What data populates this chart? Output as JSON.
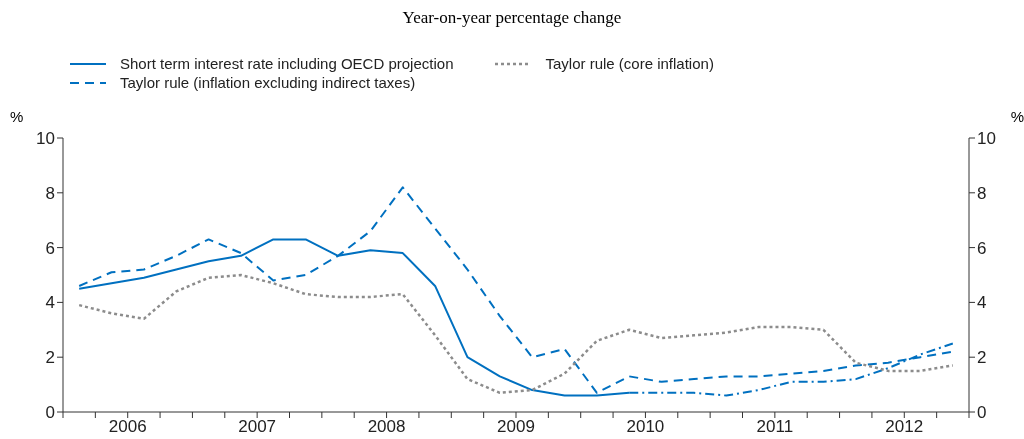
{
  "chart_data": {
    "type": "line",
    "subtitle": "Year-on-year percentage change",
    "ylabel": "%",
    "y2label": "%",
    "x": [
      2006.125,
      2006.375,
      2006.625,
      2006.875,
      2007.125,
      2007.375,
      2007.625,
      2007.875,
      2008.125,
      2008.375,
      2008.625,
      2008.875,
      2009.125,
      2009.375,
      2009.625,
      2009.875,
      2010.125,
      2010.375,
      2010.625,
      2010.875,
      2011.125,
      2011.375,
      2011.625,
      2011.875,
      2012.125,
      2012.375,
      2012.625,
      2012.875
    ],
    "xlim": [
      2006,
      2013
    ],
    "xticks": [
      {
        "value": 2006,
        "label": null
      },
      {
        "value": 2006.25,
        "label": null
      },
      {
        "value": 2006.5,
        "label": "2006"
      },
      {
        "value": 2006.75,
        "label": null
      },
      {
        "value": 2007,
        "label": null
      },
      {
        "value": 2007.25,
        "label": null
      },
      {
        "value": 2007.5,
        "label": "2007"
      },
      {
        "value": 2007.75,
        "label": null
      },
      {
        "value": 2008,
        "label": null
      },
      {
        "value": 2008.25,
        "label": null
      },
      {
        "value": 2008.5,
        "label": "2008"
      },
      {
        "value": 2008.75,
        "label": null
      },
      {
        "value": 2009,
        "label": null
      },
      {
        "value": 2009.25,
        "label": null
      },
      {
        "value": 2009.5,
        "label": "2009"
      },
      {
        "value": 2009.75,
        "label": null
      },
      {
        "value": 2010,
        "label": null
      },
      {
        "value": 2010.25,
        "label": null
      },
      {
        "value": 2010.5,
        "label": "2010"
      },
      {
        "value": 2010.75,
        "label": null
      },
      {
        "value": 2011,
        "label": null
      },
      {
        "value": 2011.25,
        "label": null
      },
      {
        "value": 2011.5,
        "label": "2011"
      },
      {
        "value": 2011.75,
        "label": null
      },
      {
        "value": 2012,
        "label": null
      },
      {
        "value": 2012.25,
        "label": null
      },
      {
        "value": 2012.5,
        "label": "2012"
      },
      {
        "value": 2012.75,
        "label": null
      },
      {
        "value": 2013,
        "label": null
      }
    ],
    "ylim": [
      0,
      10
    ],
    "yticks": [
      0,
      2,
      4,
      6,
      8,
      10
    ],
    "y2lim": [
      0,
      10
    ],
    "y2ticks": [
      0,
      2,
      4,
      6,
      8,
      10
    ],
    "grid": false,
    "legend": "top",
    "marker": "none",
    "series": [
      {
        "name": "Short term interest rate including OECD projection",
        "color": "#0070c0",
        "line_style": "solid",
        "values": [
          4.5,
          4.7,
          4.9,
          5.2,
          5.5,
          5.7,
          6.3,
          6.3,
          5.7,
          5.9,
          5.8,
          4.6,
          2.0,
          1.3,
          0.8,
          0.6,
          0.6,
          0.7,
          null,
          null,
          null,
          null,
          null,
          null,
          null,
          null,
          null,
          null
        ]
      },
      {
        "color": "#0070c0",
        "line_style": "dashdot",
        "values": [
          null,
          null,
          null,
          null,
          null,
          null,
          null,
          null,
          null,
          null,
          null,
          null,
          null,
          null,
          null,
          null,
          null,
          0.7,
          0.7,
          0.7,
          0.6,
          0.8,
          1.1,
          1.1,
          1.2,
          1.6,
          2.1,
          2.5
        ]
      },
      {
        "name": "Taylor rule (inflation excluding indirect taxes)",
        "color": "#0070c0",
        "line_style": "dashed",
        "values": [
          4.6,
          5.1,
          5.2,
          5.7,
          6.3,
          5.8,
          4.8,
          5.0,
          5.7,
          6.6,
          8.2,
          6.7,
          5.2,
          3.5,
          2.0,
          2.3,
          0.7,
          1.3,
          1.1,
          1.2,
          1.3,
          1.3,
          1.4,
          1.5,
          1.7,
          1.8,
          2.0,
          2.2
        ]
      },
      {
        "name": "Taylor rule (core inflation)",
        "color": "#8c8c8c",
        "line_style": "dotted",
        "values": [
          3.9,
          3.6,
          3.4,
          4.4,
          4.9,
          5.0,
          4.7,
          4.3,
          4.2,
          4.2,
          4.3,
          2.8,
          1.2,
          0.7,
          0.8,
          1.4,
          2.6,
          3.0,
          2.7,
          2.8,
          2.9,
          3.1,
          3.1,
          3.0,
          1.8,
          1.5,
          1.5,
          1.7
        ]
      }
    ]
  }
}
